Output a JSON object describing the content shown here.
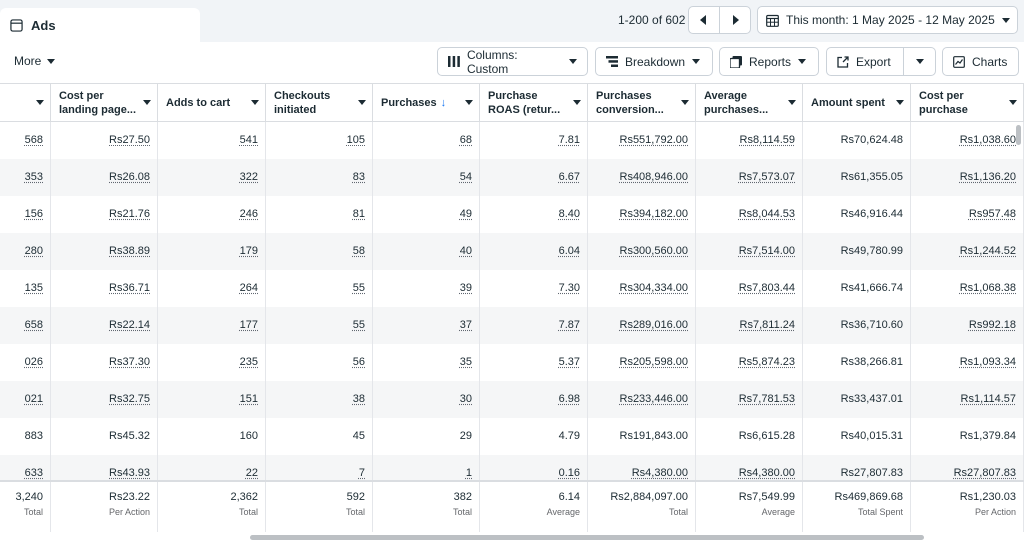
{
  "tab": {
    "title": "Ads",
    "icon": "window-icon"
  },
  "pagination": {
    "range": "1-200 of 602"
  },
  "date_range": {
    "label": "This month: 1 May 2025 - 12 May 2025"
  },
  "toolbar": {
    "more": "More",
    "columns": "Columns: Custom",
    "breakdown": "Breakdown",
    "reports": "Reports",
    "export": "Export",
    "charts": "Charts"
  },
  "columns": [
    {
      "label": ""
    },
    {
      "label": "Cost per landing page..."
    },
    {
      "label": "Adds to cart"
    },
    {
      "label": "Checkouts initiated"
    },
    {
      "label": "Purchases",
      "sorted": "↓"
    },
    {
      "label": "Purchase ROAS (retur..."
    },
    {
      "label": "Purchases conversion..."
    },
    {
      "label": "Average purchases..."
    },
    {
      "label": "Amount spent"
    },
    {
      "label": "Cost per purchase"
    }
  ],
  "rows": [
    [
      "568",
      "Rs27.50",
      "541",
      "105",
      "68",
      "7.81",
      "Rs551,792.00",
      "Rs8,114.59",
      "Rs70,624.48",
      "Rs1,038.60"
    ],
    [
      "353",
      "Rs26.08",
      "322",
      "83",
      "54",
      "6.67",
      "Rs408,946.00",
      "Rs7,573.07",
      "Rs61,355.05",
      "Rs1,136.20"
    ],
    [
      "156",
      "Rs21.76",
      "246",
      "81",
      "49",
      "8.40",
      "Rs394,182.00",
      "Rs8,044.53",
      "Rs46,916.44",
      "Rs957.48"
    ],
    [
      "280",
      "Rs38.89",
      "179",
      "58",
      "40",
      "6.04",
      "Rs300,560.00",
      "Rs7,514.00",
      "Rs49,780.99",
      "Rs1,244.52"
    ],
    [
      "135",
      "Rs36.71",
      "264",
      "55",
      "39",
      "7.30",
      "Rs304,334.00",
      "Rs7,803.44",
      "Rs41,666.74",
      "Rs1,068.38"
    ],
    [
      "658",
      "Rs22.14",
      "177",
      "55",
      "37",
      "7.87",
      "Rs289,016.00",
      "Rs7,811.24",
      "Rs36,710.60",
      "Rs992.18"
    ],
    [
      "026",
      "Rs37.30",
      "235",
      "56",
      "35",
      "5.37",
      "Rs205,598.00",
      "Rs5,874.23",
      "Rs38,266.81",
      "Rs1,093.34"
    ],
    [
      "021",
      "Rs32.75",
      "151",
      "38",
      "30",
      "6.98",
      "Rs233,446.00",
      "Rs7,781.53",
      "Rs33,437.01",
      "Rs1,114.57"
    ],
    [
      "883",
      "Rs45.32",
      "160",
      "45",
      "29",
      "4.79",
      "Rs191,843.00",
      "Rs6,615.28",
      "Rs40,015.31",
      "Rs1,379.84"
    ],
    [
      "633",
      "Rs43.93",
      "22",
      "7",
      "1",
      "0.16",
      "Rs4,380.00",
      "Rs4,380.00",
      "Rs27,807.83",
      "Rs27,807.83"
    ]
  ],
  "row_underlined": [
    true,
    true,
    true,
    true,
    true,
    true,
    true,
    true,
    false,
    true
  ],
  "totals": [
    {
      "value": "3,240",
      "label": "Total"
    },
    {
      "value": "Rs23.22",
      "label": "Per Action"
    },
    {
      "value": "2,362",
      "label": "Total"
    },
    {
      "value": "592",
      "label": "Total"
    },
    {
      "value": "382",
      "label": "Total"
    },
    {
      "value": "6.14",
      "label": "Average"
    },
    {
      "value": "Rs2,884,097.00",
      "label": "Total"
    },
    {
      "value": "Rs7,549.99",
      "label": "Average"
    },
    {
      "value": "Rs469,869.68",
      "label": "Total Spent"
    },
    {
      "value": "Rs1,230.03",
      "label": "Per Action"
    }
  ]
}
